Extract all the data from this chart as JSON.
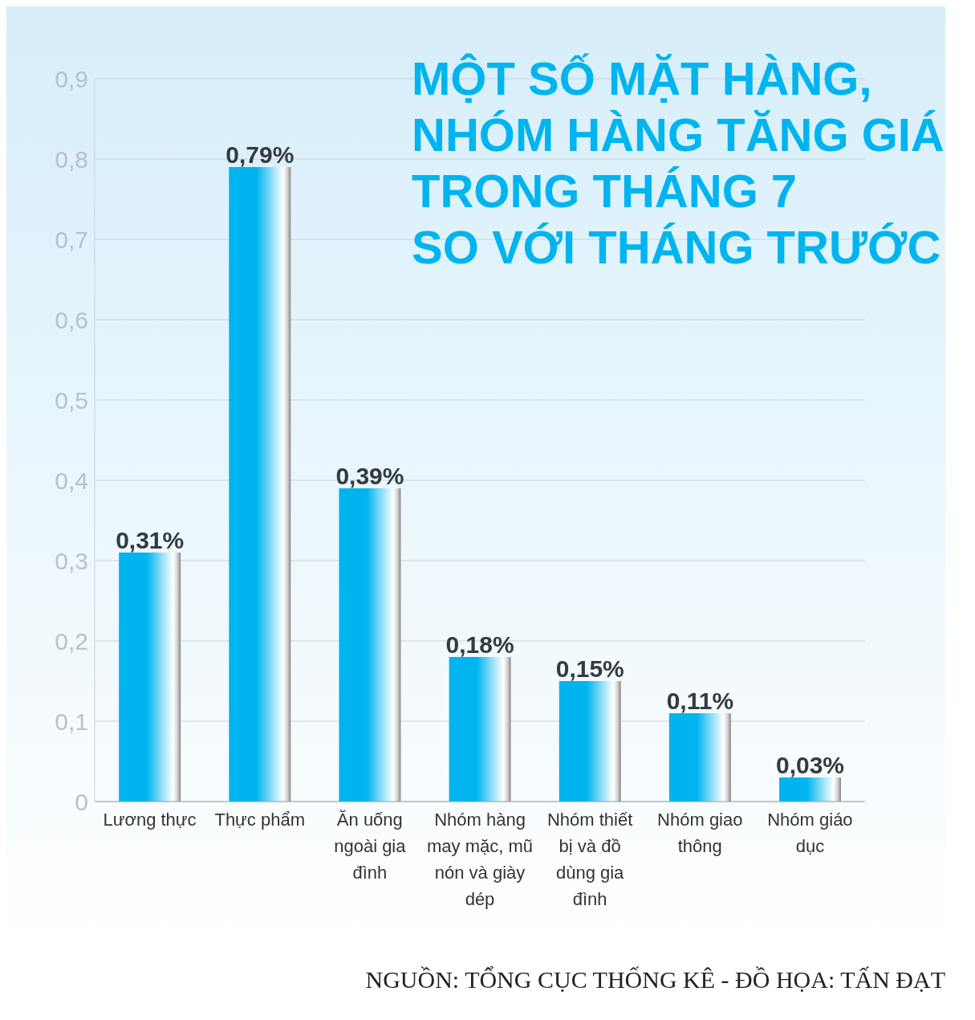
{
  "chart_data": {
    "type": "bar",
    "title": "MỘT SỐ MẶT HÀNG,\nNHÓM HÀNG TĂNG GIÁ\nTRONG THÁNG 7\nSO VỚI THÁNG TRƯỚC",
    "categories": [
      "Lương thực",
      "Thực phẩm",
      "Ăn uống ngoài gia đình",
      "Nhóm hàng may mặc, mũ nón và giày dép",
      "Nhóm thiết bị và đồ dùng gia đình",
      "Nhóm giao thông",
      "Nhóm giáo dục"
    ],
    "values": [
      0.31,
      0.79,
      0.39,
      0.18,
      0.15,
      0.11,
      0.03
    ],
    "value_labels": [
      "0,31%",
      "0,79%",
      "0,39%",
      "0,18%",
      "0,15%",
      "0,11%",
      "0,03%"
    ],
    "color": "#00b4ef",
    "ylim": [
      0,
      0.9
    ],
    "yticks": [
      {
        "value": 0,
        "label": "0"
      },
      {
        "value": 0.1,
        "label": "0,1"
      },
      {
        "value": 0.2,
        "label": "0,2"
      },
      {
        "value": 0.3,
        "label": "0,3"
      },
      {
        "value": 0.4,
        "label": "0,4"
      },
      {
        "value": 0.5,
        "label": "0,5"
      },
      {
        "value": 0.6,
        "label": "0,6"
      },
      {
        "value": 0.7,
        "label": "0,7"
      },
      {
        "value": 0.8,
        "label": "0,8"
      },
      {
        "value": 0.9,
        "label": "0,9"
      }
    ],
    "grid": "y",
    "annotations": [
      "NGUỒN: TỔNG CỤC THỐNG KÊ - ĐỒ HỌA: TẤN ĐẠT"
    ]
  }
}
